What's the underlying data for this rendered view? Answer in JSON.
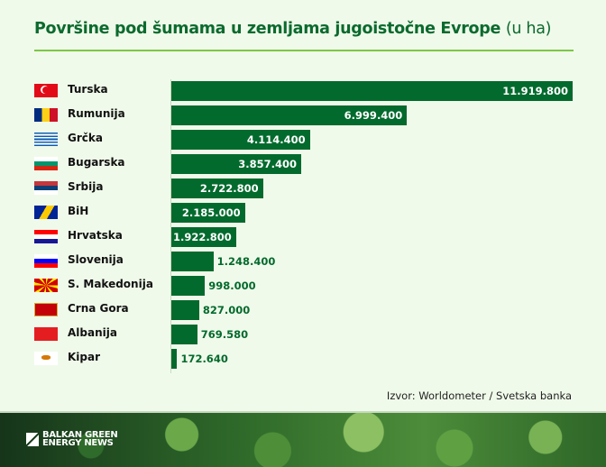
{
  "chart_data": {
    "type": "bar",
    "orientation": "horizontal",
    "title": "Površine pod šumama u zemljama jugoistočne Evrope",
    "title_unit": "(u ha)",
    "categories": [
      "Turska",
      "Rumunija",
      "Grčka",
      "Bugarska",
      "Srbija",
      "BiH",
      "Hrvatska",
      "Slovenija",
      "S. Makedonija",
      "Crna Gora",
      "Albanija",
      "Kipar"
    ],
    "values": [
      11919800,
      6999400,
      4114400,
      3857400,
      2722800,
      2185000,
      1922800,
      1248400,
      998000,
      827000,
      769580,
      172640
    ],
    "value_labels": [
      "11.919.800",
      "6.999.400",
      "4.114.400",
      "3.857.400",
      "2.722.800",
      "2.185.000",
      "1.922.800",
      "1.248.400",
      "998.000",
      "827.000",
      "769.580",
      "172.640"
    ],
    "icons": [
      "flag-turkey",
      "flag-romania",
      "flag-greece",
      "flag-bulgaria",
      "flag-serbia",
      "flag-bosnia",
      "flag-croatia",
      "flag-slovenia",
      "flag-north-macedonia",
      "flag-montenegro",
      "flag-albania",
      "flag-cyprus"
    ],
    "bar_color": "#036a2d",
    "grid": false,
    "source": "Izvor: Worldometer / Svetska banka"
  },
  "logo": {
    "line1": "BALKAN GREEN",
    "line2": "ENERGY NEWS"
  }
}
